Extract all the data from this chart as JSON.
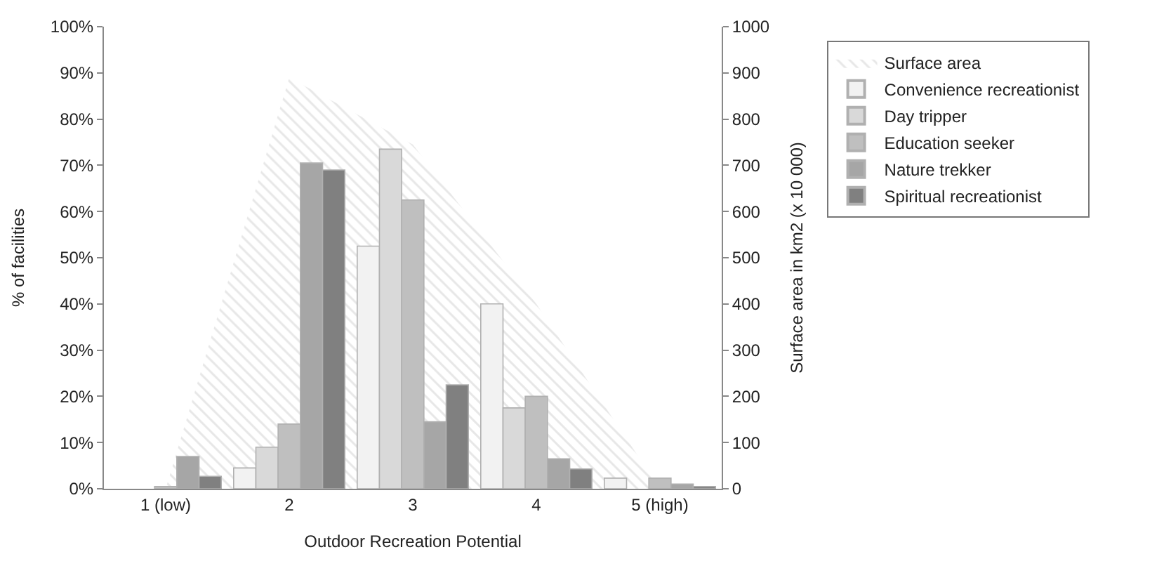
{
  "chart_data": {
    "type": "bar",
    "xlabel": "Outdoor Recreation Potential",
    "ylabel": "% of facilities",
    "y2label": "Surface area in km2 (x 10 000)",
    "categories": [
      "1 (low)",
      "2",
      "3",
      "4",
      "5 (high)"
    ],
    "series": [
      {
        "name": "Surface area",
        "type": "area",
        "axis": "y2",
        "color": "#d0d0d0",
        "values": [
          0,
          890,
          745,
          400,
          0
        ]
      },
      {
        "name": "Convenience recreationist",
        "color": "#f2f2f2",
        "values": [
          0,
          4.5,
          52.5,
          40,
          2.3
        ]
      },
      {
        "name": "Day tripper",
        "color": "#d9d9d9",
        "values": [
          0,
          9,
          73.5,
          17.5,
          0
        ]
      },
      {
        "name": "Education seeker",
        "color": "#bfbfbf",
        "values": [
          0.5,
          14,
          62.5,
          20,
          2.3
        ]
      },
      {
        "name": "Nature trekker",
        "color": "#a6a6a6",
        "values": [
          7,
          70.5,
          14.5,
          6.5,
          1
        ]
      },
      {
        "name": "Spiritual recreationist",
        "color": "#808080",
        "values": [
          2.7,
          69,
          22.5,
          4.3,
          0.5
        ]
      }
    ],
    "ylim": [
      0,
      100
    ],
    "yticks": [
      {
        "value": 0,
        "label": "0%"
      },
      {
        "value": 10,
        "label": "10%"
      },
      {
        "value": 20,
        "label": "20%"
      },
      {
        "value": 30,
        "label": "30%"
      },
      {
        "value": 40,
        "label": "40%"
      },
      {
        "value": 50,
        "label": "50%"
      },
      {
        "value": 60,
        "label": "60%"
      },
      {
        "value": 70,
        "label": "70%"
      },
      {
        "value": 80,
        "label": "80%"
      },
      {
        "value": 90,
        "label": "90%"
      },
      {
        "value": 100,
        "label": "100%"
      }
    ],
    "y2lim": [
      0,
      1000
    ],
    "y2ticks": [
      0,
      100,
      200,
      300,
      400,
      500,
      600,
      700,
      800,
      900,
      1000
    ],
    "legend": "right"
  }
}
